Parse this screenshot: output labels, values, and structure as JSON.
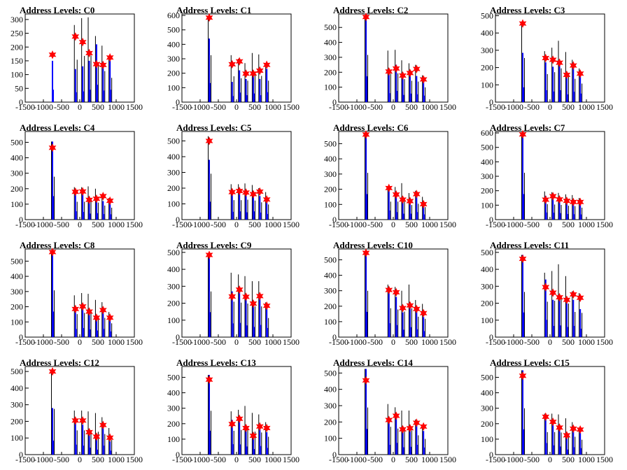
{
  "chart_data": [
    {
      "type": "bar",
      "title": "Address Levels: C0",
      "xlim": [
        -1500,
        1500
      ],
      "xticks": [
        -1500,
        -1000,
        -500,
        0,
        500,
        1000,
        1500
      ],
      "ylim": [
        0,
        320
      ],
      "yticks": [
        0,
        50,
        100,
        150,
        200,
        250,
        300
      ],
      "peaks": [
        {
          "x": -750,
          "black": 0,
          "blue": 150,
          "star": 172
        },
        {
          "x": -120,
          "black": 280,
          "blue": 120,
          "star": 238
        },
        {
          "x": 80,
          "black": 305,
          "blue": 130,
          "star": 218
        },
        {
          "x": 260,
          "black": 308,
          "blue": 150,
          "star": 178
        },
        {
          "x": 460,
          "black": 240,
          "blue": 210,
          "star": 138
        },
        {
          "x": 640,
          "black": 205,
          "blue": 140,
          "star": 135
        },
        {
          "x": 830,
          "black": 160,
          "blue": 150,
          "star": 162
        }
      ]
    },
    {
      "type": "bar",
      "title": "Address Levels: C1",
      "xlim": [
        -1500,
        1500
      ],
      "xticks": [
        -1500,
        -1000,
        -500,
        0,
        500,
        1000,
        1500
      ],
      "ylim": [
        0,
        610
      ],
      "yticks": [
        0,
        100,
        200,
        300,
        400,
        500,
        600
      ],
      "peaks": [
        {
          "x": -750,
          "black": 590,
          "blue": 440,
          "star": 585
        },
        {
          "x": -120,
          "black": 325,
          "blue": 140,
          "star": 262
        },
        {
          "x": 80,
          "black": 300,
          "blue": 220,
          "star": 282
        },
        {
          "x": 260,
          "black": 270,
          "blue": 160,
          "star": 197
        },
        {
          "x": 460,
          "black": 340,
          "blue": 200,
          "star": 198
        },
        {
          "x": 640,
          "black": 330,
          "blue": 160,
          "star": 218
        },
        {
          "x": 830,
          "black": 270,
          "blue": 230,
          "star": 258
        }
      ]
    },
    {
      "type": "bar",
      "title": "Address Levels: C2",
      "xlim": [
        -1500,
        1500
      ],
      "xticks": [
        -1500,
        -1000,
        -500,
        0,
        500,
        1000,
        1500
      ],
      "ylim": [
        0,
        590
      ],
      "yticks": [
        0,
        100,
        200,
        300,
        400,
        500
      ],
      "peaks": [
        {
          "x": -750,
          "black": 575,
          "blue": 575,
          "star": 570
        },
        {
          "x": -120,
          "black": 345,
          "blue": 200,
          "star": 205
        },
        {
          "x": 80,
          "black": 350,
          "blue": 250,
          "star": 225
        },
        {
          "x": 260,
          "black": 280,
          "blue": 160,
          "star": 178
        },
        {
          "x": 460,
          "black": 260,
          "blue": 190,
          "star": 195
        },
        {
          "x": 640,
          "black": 250,
          "blue": 175,
          "star": 222
        },
        {
          "x": 830,
          "black": 180,
          "blue": 145,
          "star": 152
        }
      ]
    },
    {
      "type": "bar",
      "title": "Address Levels: C3",
      "xlim": [
        -1500,
        1500
      ],
      "xticks": [
        -1500,
        -1000,
        -500,
        0,
        500,
        1000,
        1500
      ],
      "ylim": [
        0,
        510
      ],
      "yticks": [
        0,
        100,
        200,
        300,
        400,
        500
      ],
      "peaks": [
        {
          "x": -750,
          "black": 465,
          "blue": 285,
          "star": 455
        },
        {
          "x": -120,
          "black": 295,
          "blue": 230,
          "star": 255
        },
        {
          "x": 80,
          "black": 315,
          "blue": 205,
          "star": 245
        },
        {
          "x": 260,
          "black": 355,
          "blue": 230,
          "star": 228
        },
        {
          "x": 460,
          "black": 290,
          "blue": 150,
          "star": 158
        },
        {
          "x": 640,
          "black": 245,
          "blue": 200,
          "star": 212
        },
        {
          "x": 830,
          "black": 195,
          "blue": 165,
          "star": 165
        }
      ]
    },
    {
      "type": "bar",
      "title": "Address Levels: C4",
      "xlim": [
        -1500,
        1500
      ],
      "xticks": [
        -1500,
        -1000,
        -500,
        0,
        500,
        1000,
        1500
      ],
      "ylim": [
        0,
        570
      ],
      "yticks": [
        0,
        100,
        200,
        300,
        400,
        500
      ],
      "peaks": [
        {
          "x": -750,
          "black": 505,
          "blue": 505,
          "star": 465
        },
        {
          "x": -120,
          "black": 210,
          "blue": 180,
          "star": 180
        },
        {
          "x": 80,
          "black": 210,
          "blue": 165,
          "star": 182
        },
        {
          "x": 260,
          "black": 215,
          "blue": 130,
          "star": 128
        },
        {
          "x": 460,
          "black": 200,
          "blue": 140,
          "star": 135
        },
        {
          "x": 640,
          "black": 165,
          "blue": 120,
          "star": 152
        },
        {
          "x": 830,
          "black": 140,
          "blue": 115,
          "star": 122
        }
      ]
    },
    {
      "type": "bar",
      "title": "Address Levels: C5",
      "xlim": [
        -1500,
        1500
      ],
      "xticks": [
        -1500,
        -1000,
        -500,
        0,
        500,
        1000,
        1500
      ],
      "ylim": [
        0,
        560
      ],
      "yticks": [
        0,
        100,
        200,
        300,
        400,
        500
      ],
      "peaks": [
        {
          "x": -750,
          "black": 530,
          "blue": 380,
          "star": 500
        },
        {
          "x": -120,
          "black": 225,
          "blue": 165,
          "star": 175
        },
        {
          "x": 80,
          "black": 225,
          "blue": 175,
          "star": 182
        },
        {
          "x": 260,
          "black": 230,
          "blue": 155,
          "star": 172
        },
        {
          "x": 460,
          "black": 220,
          "blue": 175,
          "star": 162
        },
        {
          "x": 640,
          "black": 200,
          "blue": 150,
          "star": 178
        },
        {
          "x": 830,
          "black": 175,
          "blue": 120,
          "star": 128
        }
      ]
    },
    {
      "type": "bar",
      "title": "Address Levels: C6",
      "xlim": [
        -1500,
        1500
      ],
      "xticks": [
        -1500,
        -1000,
        -500,
        0,
        500,
        1000,
        1500
      ],
      "ylim": [
        0,
        580
      ],
      "yticks": [
        0,
        100,
        200,
        300,
        400,
        500
      ],
      "peaks": [
        {
          "x": -750,
          "black": 560,
          "blue": 560,
          "star": 560
        },
        {
          "x": -120,
          "black": 215,
          "blue": 200,
          "star": 208
        },
        {
          "x": 80,
          "black": 215,
          "blue": 165,
          "star": 165
        },
        {
          "x": 260,
          "black": 240,
          "blue": 130,
          "star": 132
        },
        {
          "x": 460,
          "black": 175,
          "blue": 130,
          "star": 122
        },
        {
          "x": 640,
          "black": 190,
          "blue": 165,
          "star": 168
        },
        {
          "x": 830,
          "black": 150,
          "blue": 115,
          "star": 102
        }
      ]
    },
    {
      "type": "bar",
      "title": "Address Levels: C7",
      "xlim": [
        -1500,
        1500
      ],
      "xticks": [
        -1500,
        -1000,
        -500,
        0,
        500,
        1000,
        1500
      ],
      "ylim": [
        0,
        610
      ],
      "yticks": [
        0,
        100,
        200,
        300,
        400,
        500,
        600
      ],
      "peaks": [
        {
          "x": -750,
          "black": 590,
          "blue": 590,
          "star": 590
        },
        {
          "x": -120,
          "black": 195,
          "blue": 165,
          "star": 138
        },
        {
          "x": 80,
          "black": 190,
          "blue": 160,
          "star": 162
        },
        {
          "x": 260,
          "black": 185,
          "blue": 150,
          "star": 140
        },
        {
          "x": 460,
          "black": 175,
          "blue": 130,
          "star": 130
        },
        {
          "x": 640,
          "black": 170,
          "blue": 125,
          "star": 122
        },
        {
          "x": 830,
          "black": 150,
          "blue": 120,
          "star": 122
        }
      ]
    },
    {
      "type": "bar",
      "title": "Address Levels: C8",
      "xlim": [
        -1500,
        1500
      ],
      "xticks": [
        -1500,
        -1000,
        -500,
        0,
        500,
        1000,
        1500
      ],
      "ylim": [
        0,
        580
      ],
      "yticks": [
        0,
        100,
        200,
        300,
        400,
        500
      ],
      "peaks": [
        {
          "x": -750,
          "black": 560,
          "blue": 560,
          "star": 560
        },
        {
          "x": -120,
          "black": 275,
          "blue": 180,
          "star": 185
        },
        {
          "x": 80,
          "black": 290,
          "blue": 200,
          "star": 202
        },
        {
          "x": 260,
          "black": 285,
          "blue": 170,
          "star": 168
        },
        {
          "x": 460,
          "black": 245,
          "blue": 145,
          "star": 128
        },
        {
          "x": 640,
          "black": 230,
          "blue": 180,
          "star": 178
        },
        {
          "x": 830,
          "black": 165,
          "blue": 125,
          "star": 128
        }
      ]
    },
    {
      "type": "bar",
      "title": "Address Levels: C9",
      "xlim": [
        -1500,
        1500
      ],
      "xticks": [
        -1500,
        -1000,
        -500,
        0,
        500,
        1000,
        1500
      ],
      "ylim": [
        0,
        520
      ],
      "yticks": [
        0,
        100,
        200,
        300,
        400,
        500
      ],
      "peaks": [
        {
          "x": -750,
          "black": 490,
          "blue": 490,
          "star": 485
        },
        {
          "x": -120,
          "black": 380,
          "blue": 270,
          "star": 240
        },
        {
          "x": 80,
          "black": 370,
          "blue": 280,
          "star": 280
        },
        {
          "x": 260,
          "black": 360,
          "blue": 230,
          "star": 238
        },
        {
          "x": 460,
          "black": 330,
          "blue": 200,
          "star": 198
        },
        {
          "x": 640,
          "black": 330,
          "blue": 240,
          "star": 242
        },
        {
          "x": 830,
          "black": 205,
          "blue": 180,
          "star": 185
        }
      ]
    },
    {
      "type": "bar",
      "title": "Address Levels: C10",
      "xlim": [
        -1500,
        1500
      ],
      "xticks": [
        -1500,
        -1000,
        -500,
        0,
        500,
        1000,
        1500
      ],
      "ylim": [
        0,
        570
      ],
      "yticks": [
        0,
        100,
        200,
        300,
        400,
        500
      ],
      "peaks": [
        {
          "x": -750,
          "black": 545,
          "blue": 545,
          "star": 545
        },
        {
          "x": -120,
          "black": 340,
          "blue": 300,
          "star": 305
        },
        {
          "x": 80,
          "black": 325,
          "blue": 260,
          "star": 290
        },
        {
          "x": 260,
          "black": 300,
          "blue": 160,
          "star": 188
        },
        {
          "x": 460,
          "black": 340,
          "blue": 215,
          "star": 205
        },
        {
          "x": 640,
          "black": 240,
          "blue": 170,
          "star": 182
        },
        {
          "x": 830,
          "black": 215,
          "blue": 130,
          "star": 155
        }
      ]
    },
    {
      "type": "bar",
      "title": "Address Levels: C11",
      "xlim": [
        -1500,
        1500
      ],
      "xticks": [
        -1500,
        -1000,
        -500,
        0,
        500,
        1000,
        1500
      ],
      "ylim": [
        0,
        520
      ],
      "yticks": [
        0,
        100,
        200,
        300,
        400,
        500
      ],
      "peaks": [
        {
          "x": -750,
          "black": 485,
          "blue": 485,
          "star": 462
        },
        {
          "x": -120,
          "black": 380,
          "blue": 340,
          "star": 295
        },
        {
          "x": 80,
          "black": 390,
          "blue": 220,
          "star": 262
        },
        {
          "x": 260,
          "black": 430,
          "blue": 230,
          "star": 235
        },
        {
          "x": 460,
          "black": 360,
          "blue": 200,
          "star": 220
        },
        {
          "x": 640,
          "black": 270,
          "blue": 220,
          "star": 252
        },
        {
          "x": 830,
          "black": 260,
          "blue": 165,
          "star": 232
        }
      ]
    },
    {
      "type": "bar",
      "title": "Address Levels: C12",
      "xlim": [
        -1500,
        1500
      ],
      "xticks": [
        -1500,
        -1000,
        -500,
        0,
        500,
        1000,
        1500
      ],
      "ylim": [
        0,
        530
      ],
      "yticks": [
        0,
        100,
        200,
        300,
        400,
        500
      ],
      "peaks": [
        {
          "x": -750,
          "black": 500,
          "blue": 280,
          "star": 500
        },
        {
          "x": -120,
          "black": 265,
          "blue": 200,
          "star": 205
        },
        {
          "x": 80,
          "black": 265,
          "blue": 180,
          "star": 205
        },
        {
          "x": 260,
          "black": 260,
          "blue": 140,
          "star": 135
        },
        {
          "x": 460,
          "black": 250,
          "blue": 100,
          "star": 108
        },
        {
          "x": 640,
          "black": 225,
          "blue": 180,
          "star": 178
        },
        {
          "x": 830,
          "black": 160,
          "blue": 80,
          "star": 102
        }
      ]
    },
    {
      "type": "bar",
      "title": "Address Levels: C13",
      "xlim": [
        -1500,
        1500
      ],
      "xticks": [
        -1500,
        -1000,
        -500,
        0,
        500,
        1000,
        1500
      ],
      "ylim": [
        0,
        570
      ],
      "yticks": [
        0,
        100,
        200,
        300,
        400,
        500
      ],
      "peaks": [
        {
          "x": -750,
          "black": 515,
          "blue": 515,
          "star": 485
        },
        {
          "x": -120,
          "black": 280,
          "blue": 225,
          "star": 198
        },
        {
          "x": 80,
          "black": 290,
          "blue": 220,
          "star": 232
        },
        {
          "x": 260,
          "black": 315,
          "blue": 175,
          "star": 172
        },
        {
          "x": 460,
          "black": 270,
          "blue": 120,
          "star": 122
        },
        {
          "x": 640,
          "black": 260,
          "blue": 185,
          "star": 182
        },
        {
          "x": 830,
          "black": 210,
          "blue": 145,
          "star": 172
        }
      ]
    },
    {
      "type": "bar",
      "title": "Address Levels: C14",
      "xlim": [
        -1500,
        1500
      ],
      "xticks": [
        -1500,
        -1000,
        -500,
        0,
        500,
        1000,
        1500
      ],
      "ylim": [
        0,
        540
      ],
      "yticks": [
        0,
        100,
        200,
        300,
        400,
        500
      ],
      "peaks": [
        {
          "x": -750,
          "black": 525,
          "blue": 525,
          "star": 455
        },
        {
          "x": -120,
          "black": 310,
          "blue": 200,
          "star": 212
        },
        {
          "x": 80,
          "black": 290,
          "blue": 240,
          "star": 238
        },
        {
          "x": 260,
          "black": 270,
          "blue": 150,
          "star": 155
        },
        {
          "x": 460,
          "black": 270,
          "blue": 160,
          "star": 162
        },
        {
          "x": 640,
          "black": 215,
          "blue": 200,
          "star": 195
        },
        {
          "x": 830,
          "black": 175,
          "blue": 145,
          "star": 172
        }
      ]
    },
    {
      "type": "bar",
      "title": "Address Levels: C15",
      "xlim": [
        -1500,
        1500
      ],
      "xticks": [
        -1500,
        -1000,
        -500,
        0,
        500,
        1000,
        1500
      ],
      "ylim": [
        0,
        570
      ],
      "yticks": [
        0,
        100,
        200,
        300,
        400,
        500
      ],
      "peaks": [
        {
          "x": -750,
          "black": 545,
          "blue": 545,
          "star": 510
        },
        {
          "x": -120,
          "black": 265,
          "blue": 250,
          "star": 245
        },
        {
          "x": 80,
          "black": 265,
          "blue": 200,
          "star": 212
        },
        {
          "x": 260,
          "black": 260,
          "blue": 175,
          "star": 175
        },
        {
          "x": 460,
          "black": 235,
          "blue": 110,
          "star": 125
        },
        {
          "x": 640,
          "black": 210,
          "blue": 160,
          "star": 168
        },
        {
          "x": 830,
          "black": 175,
          "blue": 140,
          "star": 162
        }
      ]
    }
  ],
  "colors": {
    "raw": "#000000",
    "filtered": "#0000ff",
    "marker": "#ff0000",
    "axis": "#000000"
  }
}
